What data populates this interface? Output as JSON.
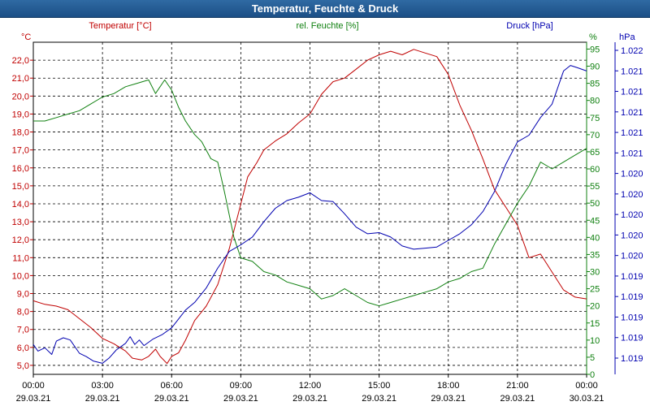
{
  "window": {
    "title": "Temperatur, Feuchte & Druck"
  },
  "colors": {
    "temp": "#c00000",
    "humidity": "#108010",
    "pressure": "#0000b0",
    "grid": "#000000"
  },
  "chart_data": {
    "type": "line",
    "title": "Temperatur, Feuchte & Druck",
    "x_tick_labels": [
      [
        "00:00",
        "29.03.21"
      ],
      [
        "03:00",
        "29.03.21"
      ],
      [
        "06:00",
        "29.03.21"
      ],
      [
        "09:00",
        "29.03.21"
      ],
      [
        "12:00",
        "29.03.21"
      ],
      [
        "15:00",
        "29.03.21"
      ],
      [
        "18:00",
        "29.03.21"
      ],
      [
        "21:00",
        "29.03.21"
      ],
      [
        "00:00",
        "30.03.21"
      ]
    ],
    "xlim": [
      0,
      24
    ],
    "axes": {
      "temp": {
        "label": "Temperatur [°C]",
        "unit": "°C",
        "ylim": [
          4.5,
          23.0
        ],
        "ticks": [
          "5,0",
          "6,0",
          "7,0",
          "8,0",
          "9,0",
          "10,0",
          "11,0",
          "12,0",
          "13,0",
          "14,0",
          "15,0",
          "16,0",
          "17,0",
          "18,0",
          "19,0",
          "20,0",
          "21,0",
          "22,0"
        ]
      },
      "humidity": {
        "label": "rel. Feuchte [%]",
        "unit": "%",
        "ylim": [
          0,
          97
        ],
        "ticks": [
          "0",
          "5",
          "10",
          "15",
          "20",
          "25",
          "30",
          "35",
          "40",
          "45",
          "50",
          "55",
          "60",
          "65",
          "70",
          "75",
          "80",
          "85",
          "90",
          "95"
        ]
      },
      "pressure": {
        "label": "Druck [hPa]",
        "unit": "hPa",
        "ylim": [
          1019.0,
          1022.0
        ],
        "ticks": [
          "1.019",
          "1.019",
          "1.019",
          "1.019",
          "1.019",
          "1.020",
          "1.020",
          "1.020",
          "1.020",
          "1.020",
          "1.021",
          "1.021",
          "1.021",
          "1.021",
          "1.021",
          "1.022"
        ]
      }
    },
    "series": [
      {
        "name": "Temperatur",
        "axis": "temp",
        "x": [
          0,
          0.5,
          1,
          1.5,
          2,
          2.5,
          3,
          3.5,
          4,
          4.3,
          4.7,
          5,
          5.3,
          5.5,
          5.8,
          6,
          6.3,
          6.6,
          7,
          7.5,
          8,
          8.5,
          9,
          9.3,
          9.7,
          10,
          10.5,
          11,
          11.5,
          12,
          12.5,
          13,
          13.5,
          14,
          14.5,
          15,
          15.5,
          16,
          16.5,
          17,
          17.5,
          18,
          18.5,
          19,
          19.5,
          20,
          20.5,
          21,
          21.5,
          22,
          22.5,
          23,
          23.5,
          24
        ],
        "values": [
          8.6,
          8.4,
          8.3,
          8.1,
          7.6,
          7.1,
          6.5,
          6.2,
          5.8,
          5.4,
          5.3,
          5.5,
          5.9,
          5.5,
          5.1,
          5.5,
          5.7,
          6.4,
          7.5,
          8.3,
          9.5,
          11.5,
          14.0,
          15.5,
          16.3,
          17.0,
          17.5,
          17.9,
          18.5,
          19.0,
          20.1,
          20.8,
          21.0,
          21.5,
          22.0,
          22.3,
          22.5,
          22.3,
          22.6,
          22.4,
          22.2,
          21.2,
          19.5,
          18.1,
          16.5,
          14.8,
          13.8,
          12.8,
          11.0,
          11.2,
          10.2,
          9.2,
          8.8,
          8.7
        ]
      },
      {
        "name": "rel. Feuchte",
        "axis": "humidity",
        "x": [
          0,
          0.5,
          1,
          1.5,
          2,
          2.5,
          3,
          3.5,
          4,
          4.5,
          5,
          5.3,
          5.7,
          6,
          6.3,
          6.6,
          7,
          7.3,
          7.7,
          8,
          8.3,
          8.7,
          9,
          9.5,
          10,
          10.5,
          11,
          11.5,
          12,
          12.5,
          13,
          13.5,
          14,
          14.5,
          15,
          15.5,
          16,
          16.5,
          17,
          17.5,
          18,
          18.5,
          19,
          19.5,
          20,
          20.5,
          21,
          21.5,
          22,
          22.5,
          23,
          23.5,
          24
        ],
        "values": [
          74,
          74,
          75,
          76,
          77,
          79,
          81,
          82,
          84,
          85,
          86,
          82,
          86,
          83,
          78,
          74,
          70,
          68,
          63,
          62,
          53,
          40,
          34,
          33,
          30,
          29,
          27,
          26,
          25,
          22,
          23,
          25,
          23,
          21,
          20,
          21,
          22,
          23,
          24,
          25,
          27,
          28,
          30,
          31,
          38,
          44,
          50,
          55,
          62,
          60,
          62,
          64,
          66
        ]
      },
      {
        "name": "Druck",
        "axis": "pressure",
        "x": [
          0,
          0.2,
          0.5,
          0.8,
          1,
          1.3,
          1.6,
          2,
          2.3,
          2.6,
          3,
          3.3,
          3.6,
          4,
          4.2,
          4.4,
          4.6,
          4.8,
          5.2,
          5.6,
          6,
          6.3,
          6.6,
          7,
          7.5,
          8,
          8.5,
          9,
          9.5,
          10,
          10.5,
          11,
          11.5,
          12,
          12.5,
          13,
          13.5,
          14,
          14.5,
          15,
          15.5,
          16,
          16.5,
          17,
          17.5,
          18,
          18.5,
          19,
          19.5,
          20,
          20.5,
          21,
          21.5,
          22,
          22.5,
          23,
          23.3,
          23.6,
          24
        ],
        "values": [
          1019.27,
          1019.21,
          1019.24,
          1019.18,
          1019.3,
          1019.33,
          1019.31,
          1019.19,
          1019.16,
          1019.12,
          1019.1,
          1019.15,
          1019.22,
          1019.28,
          1019.34,
          1019.27,
          1019.31,
          1019.26,
          1019.32,
          1019.36,
          1019.42,
          1019.5,
          1019.58,
          1019.65,
          1019.78,
          1019.96,
          1020.11,
          1020.17,
          1020.24,
          1020.38,
          1020.5,
          1020.57,
          1020.6,
          1020.64,
          1020.57,
          1020.56,
          1020.45,
          1020.33,
          1020.27,
          1020.28,
          1020.24,
          1020.16,
          1020.13,
          1020.14,
          1020.15,
          1020.21,
          1020.27,
          1020.35,
          1020.47,
          1020.65,
          1020.9,
          1021.1,
          1021.16,
          1021.32,
          1021.44,
          1021.74,
          1021.79,
          1021.77,
          1021.74
        ]
      }
    ]
  }
}
